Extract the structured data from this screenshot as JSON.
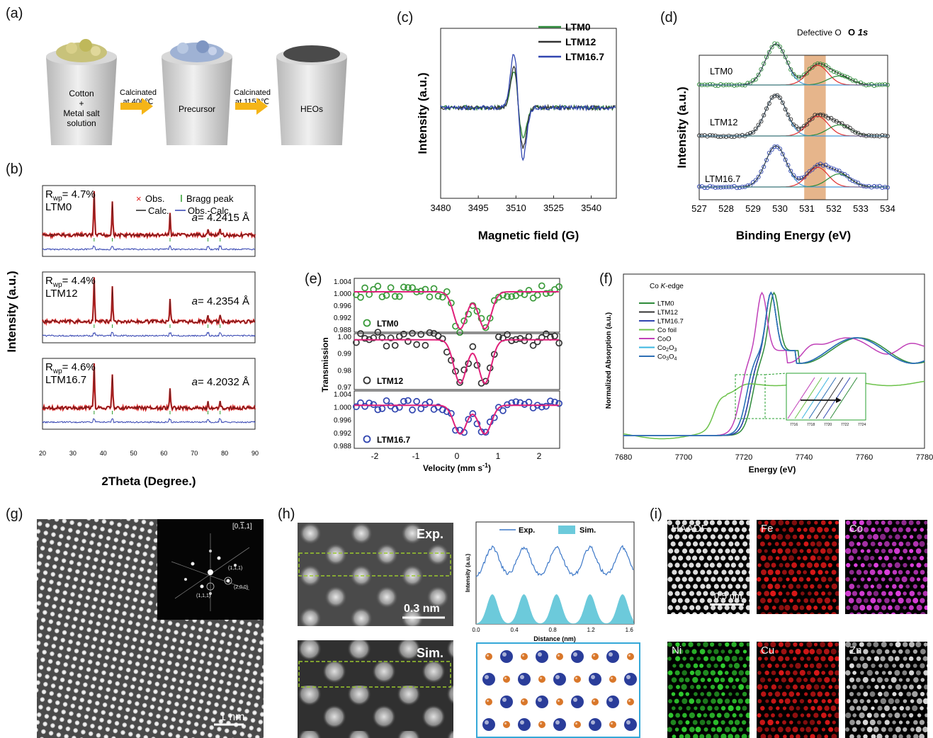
{
  "labels": {
    "a": "(a)",
    "b": "(b)",
    "c": "(c)",
    "d": "(d)",
    "e": "(e)",
    "f": "(f)",
    "g": "(g)",
    "h": "(h)",
    "i": "(i)"
  },
  "panel_a": {
    "steps": [
      "Cotton\n+\nMetal salt\nsolution",
      "Precursor",
      "HEOs"
    ],
    "arrow1": "Calcinated\nat 400℃",
    "arrow2": "Calcinated\nat 1150℃"
  },
  "chart_data": [
    {
      "panel": "b",
      "type": "line",
      "xlabel": "2Theta (Degree.)",
      "ylabel": "Intensity (a.u.)",
      "xlim": [
        20,
        90
      ],
      "xticks": [
        20,
        30,
        40,
        50,
        60,
        70,
        80,
        90
      ],
      "legend": [
        "Obs.",
        "Bragg peak",
        "Calc.",
        "Obs.-Calc."
      ],
      "subplots": [
        {
          "name": "LTM0",
          "rwp": "R",
          "rwp_sub": "wp",
          "rwp_val": "= 4.7%",
          "a_label": "a",
          "a_val": "= 4.2415 Å"
        },
        {
          "name": "LTM12",
          "rwp": "R",
          "rwp_sub": "wp",
          "rwp_val": "= 4.4%",
          "a_label": "a",
          "a_val": "= 4.2354 Å"
        },
        {
          "name": "LTM16.7",
          "rwp": "R",
          "rwp_sub": "wp",
          "rwp_val": "= 4.6%",
          "a_label": "a",
          "a_val": "= 4.2032 Å"
        }
      ],
      "peaks": [
        37,
        43,
        62,
        74.5,
        78.5
      ],
      "peak_heights": [
        1.0,
        0.78,
        0.48,
        0.12,
        0.12
      ]
    },
    {
      "panel": "c",
      "type": "line",
      "xlabel": "Magnetic field (G)",
      "ylabel": "Intensity (a.u.)",
      "xlim": [
        3480,
        3550
      ],
      "xticks": [
        3480,
        3495,
        3510,
        3525,
        3540
      ],
      "series": [
        {
          "name": "LTM0",
          "color": "#2e8b3a",
          "pos_peak": 0.55,
          "neg_peak": -0.45
        },
        {
          "name": "LTM12",
          "color": "#333333",
          "pos_peak": 0.62,
          "neg_peak": -0.62
        },
        {
          "name": "LTM16.7",
          "color": "#3146b0",
          "pos_peak": 0.85,
          "neg_peak": -0.8
        }
      ]
    },
    {
      "panel": "d",
      "type": "line",
      "xlabel": "Binding Energy (eV)",
      "ylabel": "Intensity (a.u.)",
      "xlim": [
        527,
        534
      ],
      "xticks": [
        527,
        528,
        529,
        530,
        531,
        532,
        533,
        534
      ],
      "annotation": "Defective O",
      "title": "O 1s",
      "highlight": [
        530.9,
        531.7
      ],
      "series": [
        {
          "name": "LTM0",
          "color": "#2e8b3a"
        },
        {
          "name": "LTM12",
          "color": "#333333"
        },
        {
          "name": "LTM16.7",
          "color": "#3146b0"
        }
      ]
    },
    {
      "panel": "e",
      "type": "scatter",
      "xlabel": "Velocity (mm s",
      "xlabel_sup": "-1",
      "xlabel_end": ")",
      "ylabel": "Transmission",
      "xlim": [
        -2.5,
        2.5
      ],
      "xticks": [
        -2,
        -1,
        0,
        1,
        2
      ],
      "subplots": [
        {
          "name": "LTM0",
          "color": "#3a9a3a",
          "yticks": [
            "1.004",
            "1.000",
            "0.996",
            "0.992",
            "0.988"
          ],
          "ylim": [
            0.988,
            1.004
          ],
          "depth": 0.011
        },
        {
          "name": "LTM12",
          "color": "#333333",
          "yticks": [
            "1.00",
            "0.99",
            "0.98",
            "0.97"
          ],
          "ylim": [
            0.968,
            1.004
          ],
          "depth": 0.028
        },
        {
          "name": "LTM16.7",
          "color": "#3146b0",
          "yticks": [
            "1.004",
            "1.000",
            "0.996",
            "0.992",
            "0.988"
          ],
          "ylim": [
            0.988,
            1.004
          ],
          "depth": 0.008
        }
      ]
    },
    {
      "panel": "f",
      "type": "line",
      "xlabel": "Energy (eV)",
      "ylabel": "Normalized Absorption (a.u.)",
      "title": "Co K-edge",
      "xlim": [
        7680,
        7780
      ],
      "xticks": [
        7680,
        7700,
        7720,
        7740,
        7760,
        7780
      ],
      "inset_ticks": [
        "7716",
        "7718",
        "7720",
        "7722",
        "7724"
      ],
      "series": [
        {
          "name": "LTM0",
          "color": "#2e8b3a",
          "edge": 7723,
          "peak": 7730
        },
        {
          "name": "LTM12",
          "color": "#333333",
          "edge": 7722,
          "peak": 7729
        },
        {
          "name": "LTM16.7",
          "color": "#3146b0",
          "edge": 7722,
          "peak": 7729
        },
        {
          "name": "Co foil",
          "color": "#6cc24a",
          "edge": 7710,
          "peak": 0
        },
        {
          "name": "CoO",
          "color": "#c040b8",
          "edge": 7719,
          "peak": 7726
        },
        {
          "name": "Co2O3",
          "name_main": "Co",
          "sub1": "2",
          "mid": "O",
          "sub2": "3",
          "color": "#3bb6e0",
          "edge": 7721,
          "peak": 7729
        },
        {
          "name": "Co3O4",
          "name_main": "Co",
          "sub1": "3",
          "mid": "O",
          "sub2": "4",
          "color": "#2e6fb5",
          "edge": 7721,
          "peak": 7729
        }
      ]
    },
    {
      "panel": "h_profile",
      "type": "line",
      "xlabel": "Distance (nm)",
      "ylabel": "Intensity (a.u.)",
      "xlim": [
        0,
        1.65
      ],
      "xticks": [
        "0.0",
        "0.4",
        "0.8",
        "1.2",
        "1.6"
      ],
      "series": [
        {
          "name": "Exp."
        },
        {
          "name": "Sim."
        }
      ],
      "peaks": [
        0.17,
        0.5,
        0.84,
        1.19,
        1.53
      ]
    }
  ],
  "panel_g": {
    "zone": "[0,1,1]",
    "zone_bar": "¯",
    "spots": [
      "(1,1,1)",
      "(2,0,0)",
      "(1,1,1)"
    ],
    "scale": "1 nm"
  },
  "panel_h": {
    "exp": "Exp.",
    "sim": "Sim.",
    "scale": "0.3 nm"
  },
  "panel_i": {
    "maps": [
      {
        "name": "HAADF",
        "color": "#e8e8e8"
      },
      {
        "name": "Fe",
        "color": "#e01818"
      },
      {
        "name": "Co",
        "color": "#e040e0"
      },
      {
        "name": "Ni",
        "color": "#30d030"
      },
      {
        "name": "Cu",
        "color": "#e01818"
      },
      {
        "name": "Zn",
        "color": "#dddddd"
      }
    ],
    "scale": "0.5 nm"
  }
}
